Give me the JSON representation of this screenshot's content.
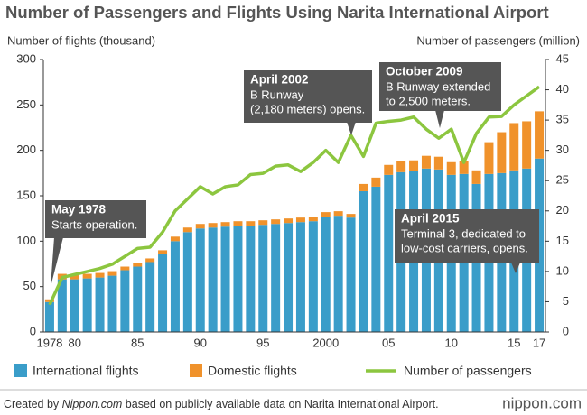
{
  "chart_data": {
    "type": "bar",
    "title": "Number of Passengers and Flights Using Narita International Airport",
    "y_label": "Number of flights (thousand)",
    "y2_label": "Number of passengers (million)",
    "categories": [
      "1978",
      null,
      "80",
      null,
      null,
      null,
      null,
      "85",
      null,
      null,
      null,
      null,
      "90",
      null,
      null,
      null,
      null,
      "95",
      null,
      null,
      null,
      null,
      "2000",
      null,
      null,
      null,
      null,
      "05",
      null,
      null,
      null,
      null,
      "10",
      null,
      null,
      null,
      null,
      "15",
      null,
      "17"
    ],
    "series": [
      {
        "name": "International flights",
        "color": "#3a9dc9",
        "values": [
          33,
          58,
          58,
          59,
          60,
          62,
          68,
          72,
          77,
          86,
          100,
          110,
          114,
          115,
          116,
          117,
          117,
          118,
          119,
          120,
          121,
          122,
          127,
          128,
          126,
          155,
          160,
          173,
          176,
          177,
          180,
          179,
          173,
          174,
          163,
          174,
          175,
          178,
          180,
          191
        ]
      },
      {
        "name": "Domestic flights",
        "color": "#f0922b",
        "values": [
          3,
          6,
          6,
          5,
          5,
          5,
          4,
          4,
          4,
          4,
          5,
          5,
          5,
          5,
          5,
          5,
          5,
          5,
          5,
          5,
          5,
          5,
          5,
          5,
          4,
          8,
          10,
          11,
          12,
          12,
          14,
          14,
          14,
          14,
          15,
          35,
          45,
          52,
          52,
          52
        ]
      },
      {
        "name": "Number of passengers",
        "color": "#8cc63f",
        "type": "line",
        "axis": "y2",
        "values": [
          4.5,
          9,
          9.5,
          10,
          10.5,
          11.2,
          12.5,
          13.8,
          14,
          16.5,
          20,
          22,
          24,
          22.8,
          24,
          24.3,
          26,
          26.2,
          27.4,
          27.6,
          26.5,
          28,
          30,
          28,
          32.5,
          29,
          34.5,
          34.8,
          35,
          35.5,
          33.5,
          32,
          33.5,
          28,
          32.8,
          35.5,
          35.6,
          37.5,
          39,
          40.5
        ]
      }
    ],
    "ylim": [
      0,
      300
    ],
    "yticks": [
      0,
      50,
      100,
      150,
      200,
      250,
      300
    ],
    "y2lim": [
      0,
      45
    ],
    "y2ticks": [
      0,
      5,
      10,
      15,
      20,
      25,
      30,
      35,
      40,
      45
    ],
    "annotations": [
      {
        "title": "May 1978",
        "lines": [
          "Starts operation."
        ]
      },
      {
        "title": "April 2002",
        "lines": [
          "B Runway",
          "(2,180 meters) opens."
        ]
      },
      {
        "title": "October 2009",
        "lines": [
          "B Runway extended",
          "to 2,500 meters."
        ]
      },
      {
        "title": "April 2015",
        "lines": [
          "Terminal 3, dedicated to",
          "low-cost carriers, opens."
        ]
      }
    ],
    "legend": "bottom"
  },
  "footer": {
    "prefix": "Created by ",
    "brand": "Nippon.com",
    "suffix": " based on publicly available data on Narita International Airport.",
    "logo": "nippon.com"
  }
}
